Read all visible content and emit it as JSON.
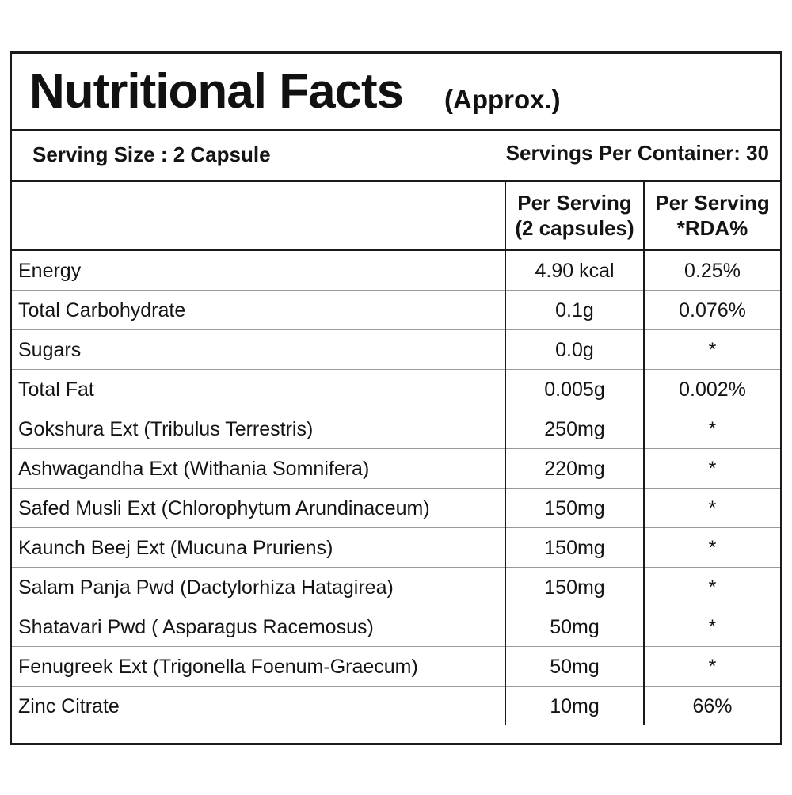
{
  "title": {
    "main": "Nutritional Facts",
    "sub": "(Approx.)"
  },
  "serving": {
    "size": "Serving Size : 2 Capsule",
    "per_container": "Servings Per Container: 30"
  },
  "table": {
    "headers": {
      "name": "",
      "amount_line1": "Per Serving",
      "amount_line2": "(2 capsules)",
      "rda_line1": "Per Serving",
      "rda_line2": "*RDA%"
    },
    "rows": [
      {
        "name": "Energy",
        "amount": "4.90 kcal",
        "rda": "0.25%"
      },
      {
        "name": "Total Carbohydrate",
        "amount": "0.1g",
        "rda": "0.076%"
      },
      {
        "name": "Sugars",
        "amount": "0.0g",
        "rda": "*"
      },
      {
        "name": "Total Fat",
        "amount": "0.005g",
        "rda": "0.002%"
      },
      {
        "name": "Gokshura Ext (Tribulus Terrestris)",
        "amount": "250mg",
        "rda": "*"
      },
      {
        "name": "Ashwagandha Ext (Withania Somnifera)",
        "amount": "220mg",
        "rda": "*"
      },
      {
        "name": "Safed Musli Ext (Chlorophytum Arundinaceum)",
        "amount": "150mg",
        "rda": "*"
      },
      {
        "name": "Kaunch Beej Ext (Mucuna Pruriens)",
        "amount": "150mg",
        "rda": "*"
      },
      {
        "name": "Salam Panja Pwd (Dactylorhiza Hatagirea)",
        "amount": "150mg",
        "rda": "*"
      },
      {
        "name": "Shatavari Pwd ( Asparagus Racemosus)",
        "amount": "50mg",
        "rda": "*"
      },
      {
        "name": "Fenugreek Ext (Trigonella Foenum-Graecum)",
        "amount": "50mg",
        "rda": "*"
      },
      {
        "name": "Zinc Citrate",
        "amount": "10mg",
        "rda": "66%"
      }
    ]
  }
}
